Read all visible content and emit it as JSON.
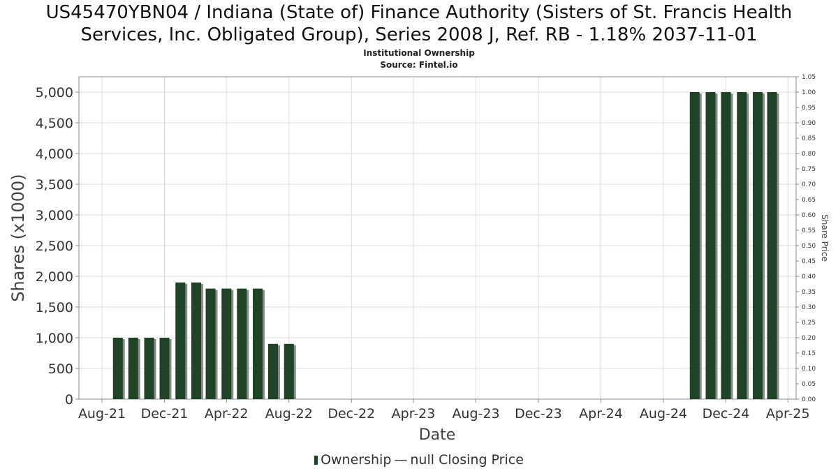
{
  "header": {
    "title_line1": "US45470YBN04 / Indiana (State of) Finance Authority (Sisters of St. Francis Health",
    "title_line2": "Services, Inc. Obligated Group), Series 2008 J, Ref. RB - 1.18% 2037-11-01",
    "subtitle_line1": "Institutional Ownership",
    "subtitle_line2": "Source: Fintel.io"
  },
  "legend": {
    "ownership_label": "Ownership",
    "dash": "—",
    "price_label": "null Closing Price"
  },
  "colors": {
    "bar": "#1e4326",
    "bar_shadow": "#8a8a8a",
    "grid": "#dddddd",
    "axis": "#888888"
  },
  "chart_data": {
    "type": "bar",
    "xlabel": "Date",
    "ylabel": "Shares (x1000)",
    "y2label": "Share Price",
    "ylim": [
      0,
      5250
    ],
    "y2lim": [
      0,
      1.05
    ],
    "grid": true,
    "legend_position": "bottom",
    "x_ticks": [
      "Aug-21",
      "Dec-21",
      "Apr-22",
      "Aug-22",
      "Dec-22",
      "Apr-23",
      "Aug-23",
      "Dec-23",
      "Apr-24",
      "Aug-24",
      "Dec-24",
      "Apr-25"
    ],
    "y_ticks": [
      "0",
      "500",
      "1,000",
      "1,500",
      "2,000",
      "2,500",
      "3,000",
      "3,500",
      "4,000",
      "4,500",
      "5,000"
    ],
    "y2_ticks": [
      "0.00",
      "0.05",
      "0.10",
      "0.15",
      "0.20",
      "0.25",
      "0.30",
      "0.35",
      "0.40",
      "0.45",
      "0.50",
      "0.55",
      "0.60",
      "0.65",
      "0.70",
      "0.75",
      "0.80",
      "0.85",
      "0.90",
      "0.95",
      "1.00",
      "1.05"
    ],
    "series": [
      {
        "name": "Ownership",
        "x": [
          "2021-09-15",
          "2021-10-15",
          "2021-11-15",
          "2021-12-15",
          "2022-01-15",
          "2022-02-15",
          "2022-03-15",
          "2022-04-15",
          "2022-05-15",
          "2022-06-15",
          "2022-07-15",
          "2022-08-15",
          "2024-10-15",
          "2024-11-15",
          "2024-12-15",
          "2025-01-15",
          "2025-02-15",
          "2025-03-15"
        ],
        "values": [
          1000,
          1000,
          1000,
          1000,
          1900,
          1900,
          1800,
          1800,
          1800,
          1800,
          900,
          900,
          5000,
          5000,
          5000,
          5000,
          5000,
          5000
        ]
      }
    ]
  }
}
